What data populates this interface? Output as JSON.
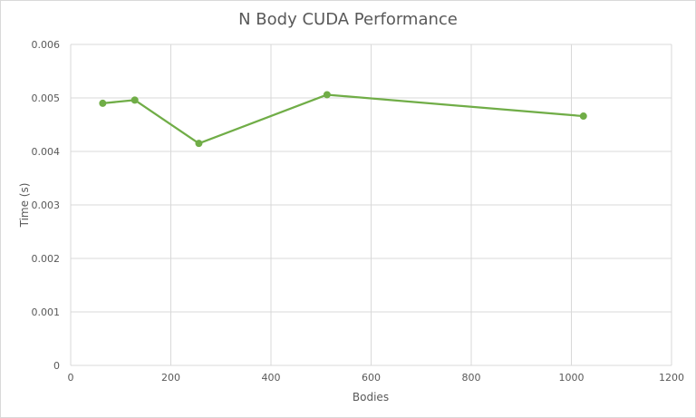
{
  "chart_data": {
    "type": "line",
    "title": "N Body CUDA Performance",
    "xlabel": "Bodies",
    "ylabel": "Time (s)",
    "xlim": [
      0,
      1200
    ],
    "ylim": [
      0,
      0.006
    ],
    "x_ticks": [
      "0",
      "200",
      "400",
      "600",
      "800",
      "1000",
      "1200"
    ],
    "y_ticks": [
      "0",
      "0.001",
      "0.002",
      "0.003",
      "0.004",
      "0.005",
      "0.006"
    ],
    "grid": true,
    "legend": "none",
    "series": [
      {
        "x": [
          64,
          128,
          256,
          512,
          1024
        ],
        "y": [
          0.0049,
          0.00496,
          0.00415,
          0.00506,
          0.00466
        ],
        "color": "#70ad47"
      }
    ]
  }
}
